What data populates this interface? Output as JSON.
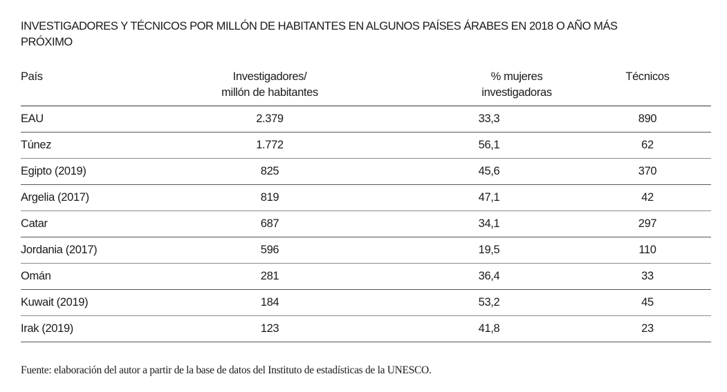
{
  "title": "INVESTIGADORES Y TÉCNICOS POR MILLÓN DE HABITANTES EN ALGUNOS PAÍSES ÁRABES EN 2018 O AÑO MÁS PRÓXIMO",
  "columns": {
    "country": "País",
    "researchers_line1": "Investigadores/",
    "researchers_line2": "millón de habitantes",
    "women_line1": "% mujeres",
    "women_line2": "investigadoras",
    "technicians": "Técnicos"
  },
  "rows": [
    {
      "country": "EAU",
      "researchers": "2.379",
      "women": "33,3",
      "technicians": "890"
    },
    {
      "country": "Túnez",
      "researchers": "1.772",
      "women": "56,1",
      "technicians": "62"
    },
    {
      "country": "Egipto (2019)",
      "researchers": "825",
      "women": "45,6",
      "technicians": "370"
    },
    {
      "country": "Argelia (2017)",
      "researchers": "819",
      "women": "47,1",
      "technicians": "42"
    },
    {
      "country": "Catar",
      "researchers": "687",
      "women": "34,1",
      "technicians": "297"
    },
    {
      "country": "Jordania (2017)",
      "researchers": "596",
      "women": "19,5",
      "technicians": "110"
    },
    {
      "country": "Omán",
      "researchers": "281",
      "women": "36,4",
      "technicians": "33"
    },
    {
      "country": "Kuwait (2019)",
      "researchers": "184",
      "women": "53,2",
      "technicians": "45"
    },
    {
      "country": "Irak (2019)",
      "researchers": "123",
      "women": "41,8",
      "technicians": "23"
    }
  ],
  "footer": "Fuente: elaboración del autor a partir de la base de datos del Instituto de estadísticas de la UNESCO."
}
